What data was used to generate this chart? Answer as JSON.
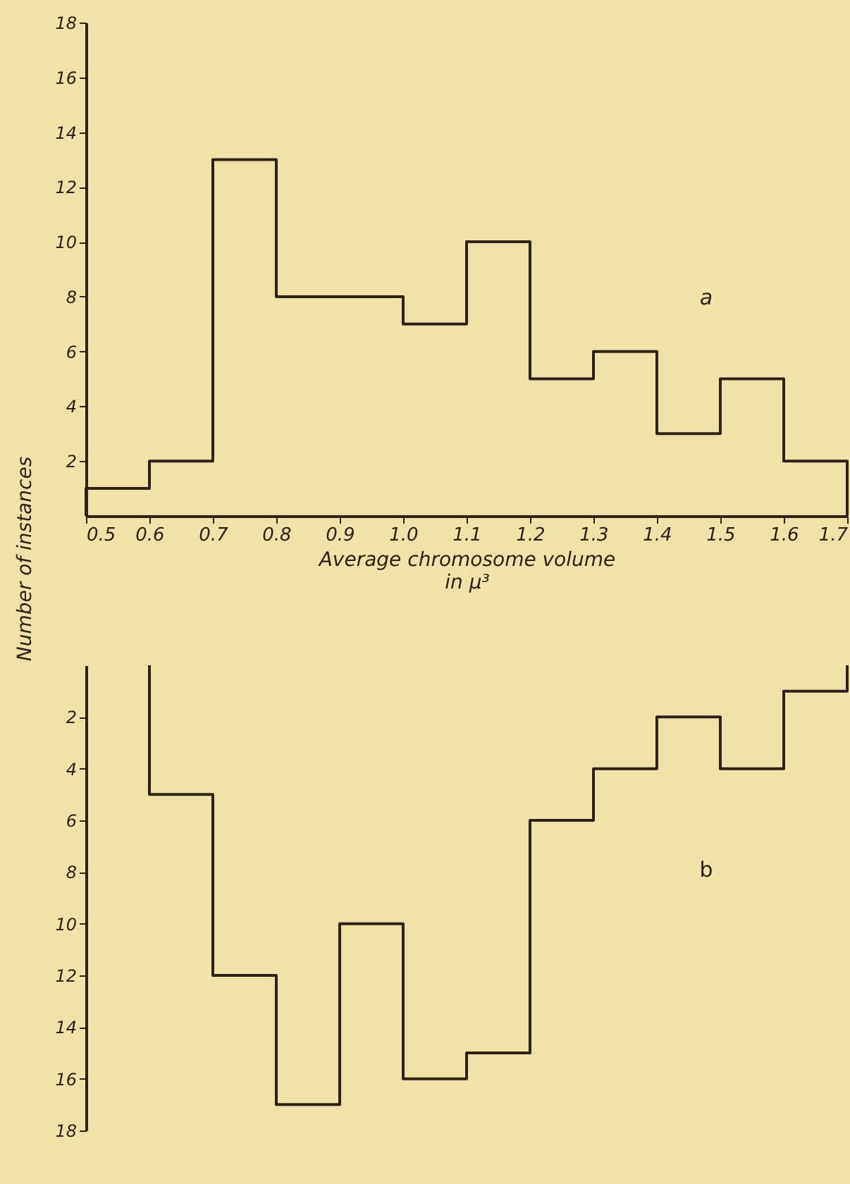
{
  "chart_data": [
    {
      "type": "histogram",
      "xlabel": [
        "Average chromosome volume",
        "in μ³"
      ],
      "ylabel": "Number of instances",
      "annotations": [
        "a"
      ],
      "color": "#2b2218",
      "bins": [
        0.5,
        0.6,
        0.7,
        0.8,
        0.9,
        1.0,
        1.1,
        1.2,
        1.3,
        1.4,
        1.5,
        1.6,
        1.7
      ],
      "values": [
        1,
        2,
        13,
        8,
        8,
        7,
        10,
        5,
        6,
        3,
        5,
        2
      ],
      "xlim": [
        0.5,
        1.7
      ],
      "xticks": [
        0.5,
        0.6,
        0.7,
        0.8,
        0.9,
        {
          "value": 1,
          "label": "1.0"
        },
        1.1,
        1.2,
        1.3,
        1.4,
        1.5,
        1.6,
        1.7
      ],
      "ylim": [
        0,
        18
      ],
      "yticks": [
        2,
        4,
        6,
        8,
        10,
        12,
        14,
        16,
        18
      ],
      "grid": false
    },
    {
      "type": "histogram",
      "annotations": [
        "b"
      ],
      "color": "#2b2218",
      "bins": [
        0.6,
        0.7,
        0.8,
        0.9,
        1.0,
        1.1,
        1.2,
        1.3,
        1.4,
        1.5,
        1.6,
        1.7
      ],
      "values": [
        5,
        12,
        17,
        10,
        16,
        15,
        6,
        4,
        2,
        4,
        1
      ],
      "xlim": [
        0.5,
        1.7
      ],
      "ylim": [
        18,
        0
      ],
      "yticks": [
        2,
        4,
        6,
        8,
        10,
        12,
        14,
        16,
        18
      ],
      "tick_labels": "y",
      "grid": false
    }
  ]
}
